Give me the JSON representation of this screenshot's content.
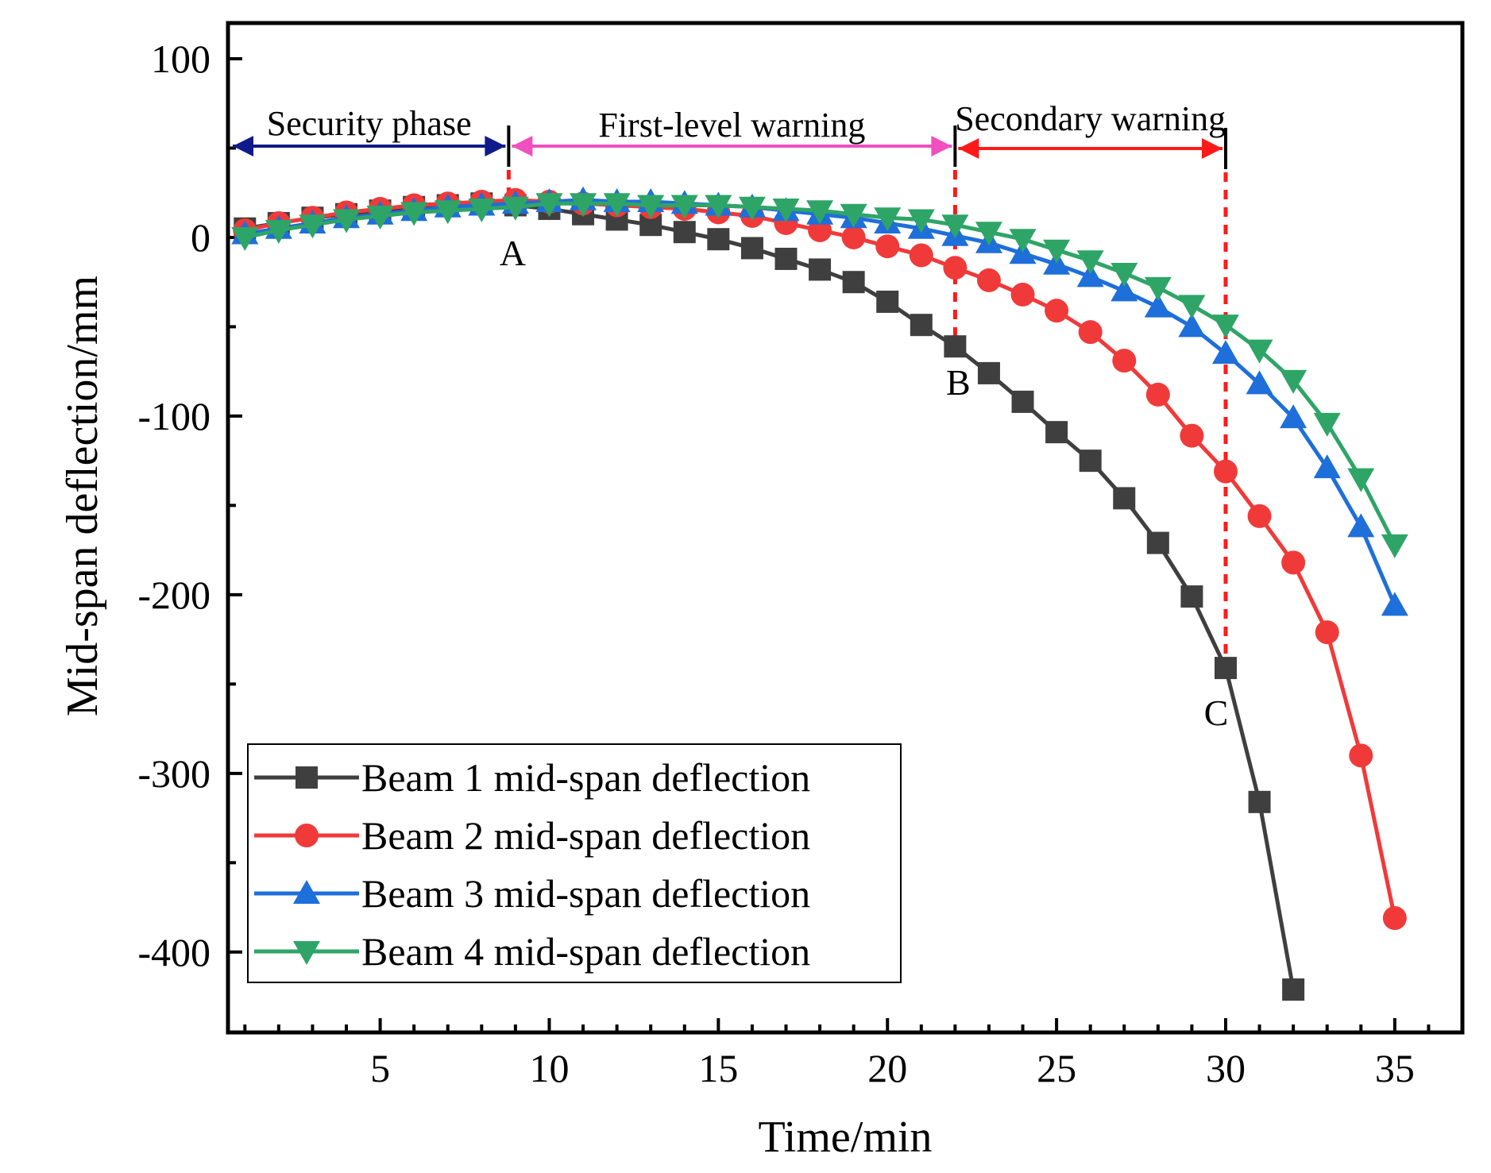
{
  "chart_data": {
    "type": "line",
    "xlabel": "Time/min",
    "ylabel": "Mid-span deflection/mm",
    "xlim": [
      0.5,
      37
    ],
    "ylim": [
      -445,
      120
    ],
    "xticks": [
      5,
      10,
      15,
      20,
      25,
      30,
      35
    ],
    "yticks": [
      100,
      0,
      -100,
      -200,
      -300,
      -400
    ],
    "xtick_labels": [
      "5",
      "10",
      "15",
      "20",
      "25",
      "30",
      "35"
    ],
    "ytick_labels": [
      "100",
      "0",
      "-100",
      "-200",
      "-300",
      "-400"
    ],
    "grid": false,
    "legend_position": "bottom-left",
    "series": [
      {
        "name": "Beam 1 mid-span deflection",
        "color": "#3f3f3f",
        "marker": "square",
        "x": [
          1,
          2,
          3,
          4,
          5,
          6,
          7,
          8,
          9,
          10,
          11,
          12,
          13,
          14,
          15,
          16,
          17,
          18,
          19,
          20,
          21,
          22,
          23,
          24,
          25,
          26,
          27,
          28,
          29,
          30,
          31,
          32
        ],
        "values": [
          5,
          8,
          11,
          13,
          15,
          17,
          18,
          19,
          18,
          16,
          13,
          10,
          7,
          3,
          -1,
          -6,
          -12,
          -18,
          -25,
          -36,
          -49,
          -61,
          -76,
          -92,
          -109,
          -125,
          -146,
          -171,
          -201,
          -241,
          -316,
          -421
        ]
      },
      {
        "name": "Beam 2 mid-span deflection",
        "color": "#f03a3a",
        "marker": "circle",
        "x": [
          1,
          2,
          3,
          4,
          5,
          6,
          7,
          8,
          9,
          10,
          11,
          12,
          13,
          14,
          15,
          16,
          17,
          18,
          19,
          20,
          21,
          22,
          23,
          24,
          25,
          26,
          27,
          28,
          29,
          30,
          31,
          32,
          33,
          34,
          35
        ],
        "values": [
          4,
          8,
          11,
          14,
          16,
          18,
          19,
          20,
          21,
          20,
          19,
          18,
          17,
          16,
          14,
          12,
          8,
          4,
          0,
          -5,
          -10,
          -17,
          -24,
          -32,
          -41,
          -53,
          -69,
          -88,
          -111,
          -131,
          -156,
          -182,
          -221,
          -290,
          -381
        ]
      },
      {
        "name": "Beam 3 mid-span deflection",
        "color": "#1e6fd9",
        "marker": "triangle-up",
        "x": [
          1,
          2,
          3,
          4,
          5,
          6,
          7,
          8,
          9,
          10,
          11,
          12,
          13,
          14,
          15,
          16,
          17,
          18,
          19,
          20,
          21,
          22,
          23,
          24,
          25,
          26,
          27,
          28,
          29,
          30,
          31,
          32,
          33,
          34,
          35
        ],
        "values": [
          2,
          5,
          8,
          11,
          13,
          15,
          17,
          18,
          19,
          20,
          21,
          20,
          20,
          19,
          18,
          17,
          15,
          13,
          11,
          8,
          5,
          1,
          -3,
          -9,
          -15,
          -22,
          -30,
          -39,
          -50,
          -65,
          -82,
          -101,
          -129,
          -162,
          -206
        ]
      },
      {
        "name": "Beam 4 mid-span deflection",
        "color": "#2ea567",
        "marker": "triangle-down",
        "x": [
          1,
          2,
          3,
          4,
          5,
          6,
          7,
          8,
          9,
          10,
          11,
          12,
          13,
          14,
          15,
          16,
          17,
          18,
          19,
          20,
          21,
          22,
          23,
          24,
          25,
          26,
          27,
          28,
          29,
          30,
          31,
          32,
          33,
          34,
          35
        ],
        "values": [
          0,
          4,
          7,
          10,
          12,
          14,
          15,
          16,
          17,
          19,
          19,
          19,
          18,
          18,
          18,
          17,
          16,
          15,
          13,
          11,
          10,
          7,
          3,
          -1,
          -7,
          -13,
          -20,
          -28,
          -38,
          -49,
          -63,
          -80,
          -104,
          -135,
          -172
        ]
      }
    ],
    "phases": [
      {
        "label": "Security phase",
        "from": 0.5,
        "to": 8.8,
        "color": "#101a8a"
      },
      {
        "label": "First-level warning",
        "from": 8.8,
        "to": 22,
        "color": "#f04fbf"
      },
      {
        "label": "Secondary warning",
        "from": 22,
        "to": 30,
        "color": "#ff1a1a"
      }
    ],
    "markers": [
      {
        "label": "A",
        "x": 8.8
      },
      {
        "label": "B",
        "x": 22
      },
      {
        "label": "C",
        "x": 30
      }
    ]
  }
}
